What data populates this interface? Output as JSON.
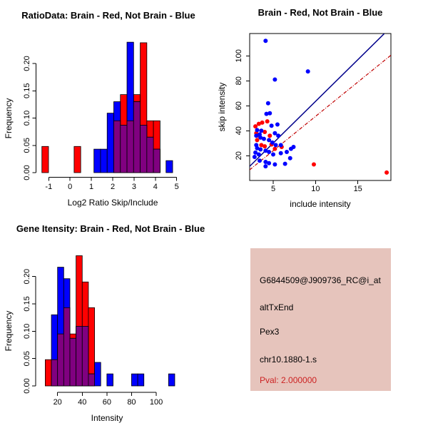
{
  "page": {
    "background": "#ffffff"
  },
  "colors": {
    "red": "#ff0000",
    "blue": "#0000ff",
    "overlap": "#800080",
    "line_blue": "#00008b",
    "line_red": "#c00000",
    "axis": "#000000",
    "panel_bg": "#e6c4bc",
    "pval_red": "#cc2222"
  },
  "chart_data": [
    {
      "id": "ratio_hist",
      "type": "bar",
      "title": "RatioData: Brain - Red, Not Brain - Blue",
      "xlabel": "Log2 Ratio Skip/Include",
      "ylabel": "Frequency",
      "x_ticks": [
        -1,
        0,
        1,
        2,
        3,
        4,
        5
      ],
      "x_tick_labels": [
        "-1",
        "0",
        "1",
        "2",
        "3",
        "4",
        "5"
      ],
      "y_ticks": [
        0,
        0.05,
        0.1,
        0.15,
        0.2
      ],
      "y_tick_labels": [
        "0.00",
        "0.05",
        "0.10",
        "0.15",
        "0.20"
      ],
      "xlim": [
        -1.5,
        5.2
      ],
      "ylim": [
        0,
        0.24
      ],
      "grid": false,
      "bin_width": 0.31,
      "series": [
        {
          "name": "Brain",
          "color_key": "red",
          "bars": [
            {
              "x": -1.32,
              "h": 0.048
            },
            {
              "x": 0.19,
              "h": 0.048
            },
            {
              "x": 2.05,
              "h": 0.095
            },
            {
              "x": 2.36,
              "h": 0.143
            },
            {
              "x": 2.67,
              "h": 0.095
            },
            {
              "x": 2.98,
              "h": 0.143
            },
            {
              "x": 3.29,
              "h": 0.238
            },
            {
              "x": 3.6,
              "h": 0.095
            },
            {
              "x": 3.91,
              "h": 0.095
            }
          ]
        },
        {
          "name": "Not Brain",
          "color_key": "blue",
          "bars": [
            {
              "x": 1.12,
              "h": 0.043
            },
            {
              "x": 1.43,
              "h": 0.043
            },
            {
              "x": 1.74,
              "h": 0.109
            },
            {
              "x": 2.05,
              "h": 0.13
            },
            {
              "x": 2.36,
              "h": 0.087
            },
            {
              "x": 2.67,
              "h": 0.239
            },
            {
              "x": 2.98,
              "h": 0.13
            },
            {
              "x": 3.29,
              "h": 0.087
            },
            {
              "x": 3.6,
              "h": 0.065
            },
            {
              "x": 3.91,
              "h": 0.043
            },
            {
              "x": 4.5,
              "h": 0.022
            }
          ]
        }
      ]
    },
    {
      "id": "scatter",
      "type": "scatter",
      "title": "Brain - Red, Not Brain - Blue",
      "xlabel": "include intensity",
      "ylabel": "skip intensity",
      "x_ticks": [
        5,
        10,
        15
      ],
      "x_tick_labels": [
        "5",
        "10",
        "15"
      ],
      "y_ticks": [
        20,
        40,
        60,
        80,
        100
      ],
      "y_tick_labels": [
        "20",
        "40",
        "60",
        "80",
        "100"
      ],
      "xlim": [
        2.2,
        18.9
      ],
      "ylim": [
        0,
        118
      ],
      "grid": false,
      "series": [
        {
          "name": "Brain",
          "color_key": "red",
          "points": [
            [
              2.9,
              43.5
            ],
            [
              3.3,
              45.5
            ],
            [
              3.7,
              46.5
            ],
            [
              4.3,
              47.5
            ],
            [
              3.0,
              38
            ],
            [
              3.3,
              36
            ],
            [
              4.0,
              39
            ],
            [
              4.6,
              36
            ],
            [
              3.1,
              32.5
            ],
            [
              3.6,
              28.5
            ],
            [
              4.0,
              27.5
            ],
            [
              4.8,
              29
            ],
            [
              5.2,
              25.5
            ],
            [
              6.0,
              27
            ],
            [
              9.8,
              13
            ],
            [
              18.4,
              6.5
            ]
          ]
        },
        {
          "name": "Not Brain",
          "color_key": "blue",
          "points": [
            [
              4.1,
              112
            ],
            [
              9.1,
              87.5
            ],
            [
              5.2,
              81
            ],
            [
              4.4,
              62
            ],
            [
              4.2,
              53.5
            ],
            [
              4.6,
              54
            ],
            [
              5.5,
              45
            ],
            [
              4.8,
              44
            ],
            [
              3.1,
              40.5
            ],
            [
              3.6,
              40
            ],
            [
              3.4,
              37
            ],
            [
              3.0,
              36
            ],
            [
              3.5,
              34.5
            ],
            [
              3.9,
              33.5
            ],
            [
              5.2,
              38
            ],
            [
              5.6,
              36
            ],
            [
              4.5,
              32.5
            ],
            [
              4.9,
              30.5
            ],
            [
              5.3,
              28.5
            ],
            [
              3.1,
              26
            ],
            [
              3.5,
              25
            ],
            [
              4.1,
              24
            ],
            [
              4.5,
              23
            ],
            [
              5.0,
              21
            ],
            [
              5.9,
              28.5
            ],
            [
              6.6,
              23
            ],
            [
              7.1,
              25.5
            ],
            [
              7.4,
              27
            ],
            [
              2.8,
              19
            ],
            [
              3.4,
              16
            ],
            [
              4.1,
              15
            ],
            [
              4.5,
              14
            ],
            [
              5.2,
              13
            ],
            [
              4.1,
              11.5
            ],
            [
              6.4,
              13.5
            ],
            [
              7.0,
              18
            ],
            [
              5.9,
              22
            ],
            [
              3.3,
              21
            ],
            [
              2.9,
              22.5
            ],
            [
              3.0,
              28.5
            ]
          ]
        }
      ],
      "lines": [
        {
          "name": "brain-fit-line",
          "color_key": "line_red",
          "style": "dotdash",
          "x1": 2.2,
          "y1": 8.6,
          "x2": 18.9,
          "y2": 100.5
        },
        {
          "name": "notbrain-fit-line",
          "color_key": "line_blue",
          "style": "solid",
          "x1": 2.2,
          "y1": 11.4,
          "x2": 18.1,
          "y2": 117.7
        }
      ]
    },
    {
      "id": "intensity_hist",
      "type": "bar",
      "title": "Gene Itensity: Brain - Red, Not Brain - Blue",
      "xlabel": "Intensity",
      "ylabel": "Frequency",
      "x_ticks": [
        20,
        40,
        60,
        80,
        100
      ],
      "x_tick_labels": [
        "20",
        "40",
        "60",
        "80",
        "100"
      ],
      "y_ticks": [
        0,
        0.05,
        0.1,
        0.15,
        0.2
      ],
      "y_tick_labels": [
        "0.00",
        "0.05",
        "0.10",
        "0.15",
        "0.20"
      ],
      "xlim": [
        8,
        118
      ],
      "ylim": [
        0,
        0.24
      ],
      "grid": false,
      "bin_width": 5,
      "series": [
        {
          "name": "Brain",
          "color_key": "red",
          "bars": [
            {
              "x": 10,
              "h": 0.048
            },
            {
              "x": 15,
              "h": 0.048
            },
            {
              "x": 20,
              "h": 0.095
            },
            {
              "x": 25,
              "h": 0.143
            },
            {
              "x": 30,
              "h": 0.095
            },
            {
              "x": 35,
              "h": 0.238
            },
            {
              "x": 40,
              "h": 0.19
            },
            {
              "x": 45,
              "h": 0.143
            }
          ]
        },
        {
          "name": "Not Brain",
          "color_key": "blue",
          "bars": [
            {
              "x": 15,
              "h": 0.13
            },
            {
              "x": 20,
              "h": 0.217
            },
            {
              "x": 25,
              "h": 0.196
            },
            {
              "x": 30,
              "h": 0.087
            },
            {
              "x": 35,
              "h": 0.109
            },
            {
              "x": 40,
              "h": 0.109
            },
            {
              "x": 45,
              "h": 0.022
            },
            {
              "x": 50,
              "h": 0.043
            },
            {
              "x": 60,
              "h": 0.022
            },
            {
              "x": 80,
              "h": 0.022
            },
            {
              "x": 85,
              "h": 0.022
            },
            {
              "x": 110,
              "h": 0.022
            }
          ]
        }
      ]
    }
  ],
  "info_panel": {
    "lines": [
      {
        "text": "G6844509@J909736_RC@i_at",
        "color": "#000000"
      },
      {
        "text": "altTxEnd",
        "color": "#000000"
      },
      {
        "text": "Pex3",
        "color": "#000000"
      },
      {
        "text": "chr10.1880-1.s",
        "color": "#000000"
      },
      {
        "text": "Pval: 2.000000",
        "color": "#cc2222"
      }
    ]
  }
}
